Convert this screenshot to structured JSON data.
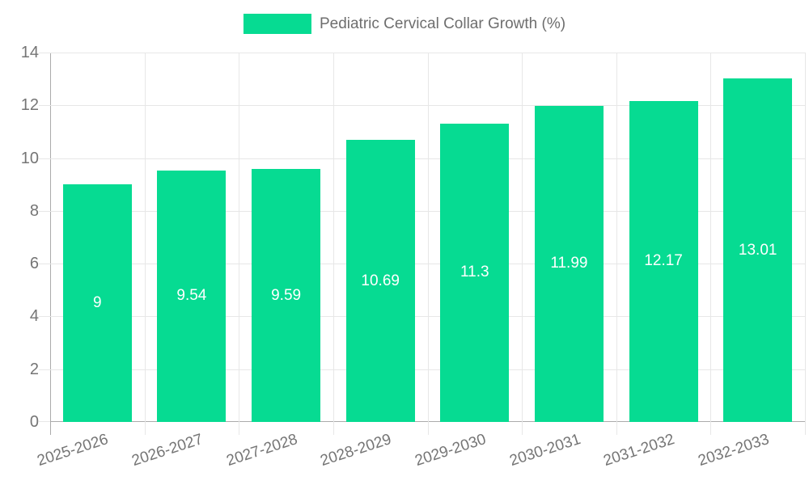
{
  "legend": {
    "label": "Pediatric Cervical Collar Growth (%)"
  },
  "colors": {
    "bar": "#06db92",
    "bar_label_text": "#ffffff",
    "axis_text": "#757575",
    "legend_text": "#6e6e6e",
    "gridline": "#e7e7e7",
    "axis_line": "#ababab",
    "background": "#ffffff"
  },
  "chart_data": {
    "type": "bar",
    "title": "Pediatric Cervical Collar Growth (%)",
    "categories": [
      "2025-2026",
      "2026-2027",
      "2027-2028",
      "2028-2029",
      "2029-2030",
      "2030-2031",
      "2031-2032",
      "2032-2033"
    ],
    "values": [
      9,
      9.54,
      9.59,
      10.69,
      11.3,
      11.99,
      12.17,
      13.01
    ],
    "bar_labels": [
      "9",
      "9.54",
      "9.59",
      "10.69",
      "11.3",
      "11.99",
      "12.17",
      "13.01"
    ],
    "xlabel": "",
    "ylabel": "",
    "ylim": [
      0,
      14
    ],
    "yticks": [
      0,
      2,
      4,
      6,
      8,
      10,
      12,
      14
    ],
    "grid": true,
    "legend_position": "top-center",
    "bar_label_position": "middle"
  }
}
